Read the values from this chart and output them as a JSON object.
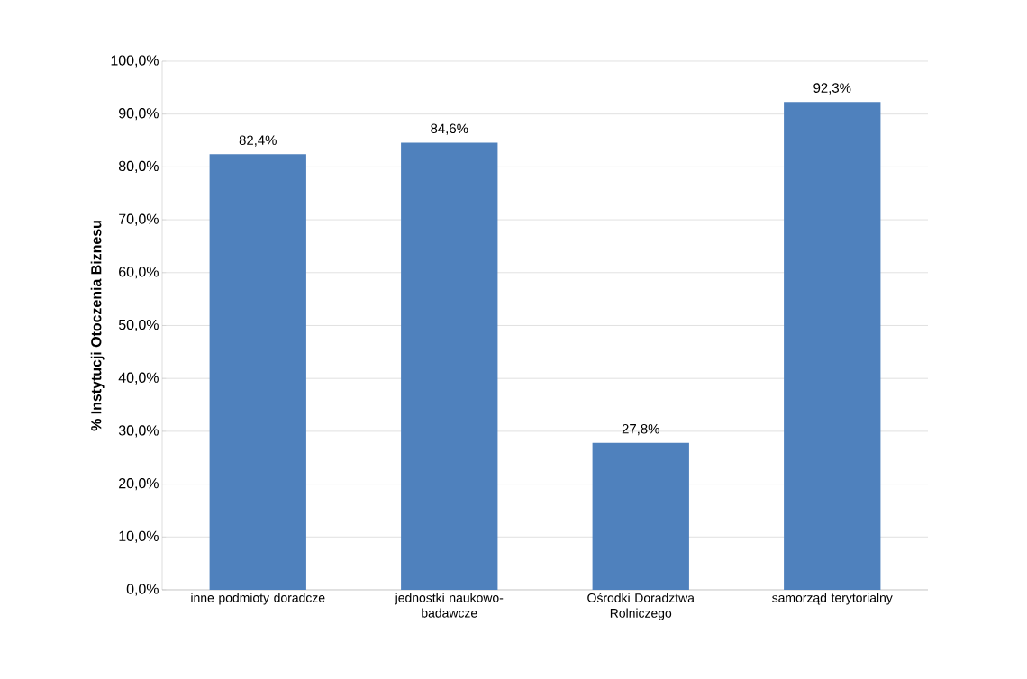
{
  "chart_data": {
    "type": "bar",
    "ylabel": "% Instytucji Otoczenia Biznesu",
    "categories": [
      "inne podmioty doradcze",
      "jednostki naukowo-badawcze",
      "Ośrodki Doradztwa Rolniczego",
      "samorząd terytorialny"
    ],
    "values": [
      82.4,
      84.6,
      27.8,
      92.3
    ],
    "value_labels": [
      "82,4%",
      "84,6%",
      "27,8%",
      "92,3%"
    ],
    "color": "#4f81bd",
    "ylim": [
      0,
      100
    ],
    "yticks": [
      {
        "value": 0,
        "label": "0,0%"
      },
      {
        "value": 10,
        "label": "10,0%"
      },
      {
        "value": 20,
        "label": "20,0%"
      },
      {
        "value": 30,
        "label": "30,0%"
      },
      {
        "value": 40,
        "label": "40,0%"
      },
      {
        "value": 50,
        "label": "50,0%"
      },
      {
        "value": 60,
        "label": "60,0%"
      },
      {
        "value": 70,
        "label": "70,0%"
      },
      {
        "value": 80,
        "label": "80,0%"
      },
      {
        "value": 90,
        "label": "90,0%"
      },
      {
        "value": 100,
        "label": "100,0%"
      }
    ],
    "grid": true
  }
}
